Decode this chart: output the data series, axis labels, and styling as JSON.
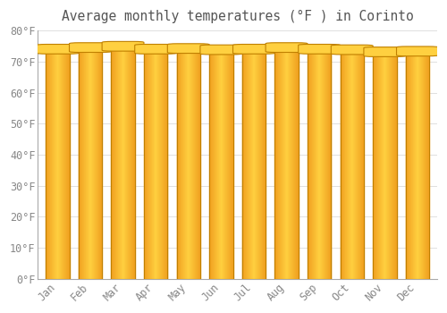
{
  "months": [
    "Jan",
    "Feb",
    "Mar",
    "Apr",
    "May",
    "Jun",
    "Jul",
    "Aug",
    "Sep",
    "Oct",
    "Nov",
    "Dec"
  ],
  "values": [
    74.3,
    74.8,
    75.2,
    74.3,
    74.5,
    74.1,
    74.3,
    74.8,
    74.3,
    74.1,
    73.4,
    73.6
  ],
  "bar_color_center": "#FFD040",
  "bar_color_edge": "#F0A020",
  "bar_border_color": "#C08000",
  "title": "Average monthly temperatures (°F ) in Corinto",
  "ylim": [
    0,
    80
  ],
  "ytick_step": 10,
  "background_color": "#FFFFFF",
  "grid_color": "#E0E0E0",
  "title_fontsize": 10.5,
  "tick_fontsize": 8.5,
  "tick_color": "#888888",
  "title_color": "#555555"
}
